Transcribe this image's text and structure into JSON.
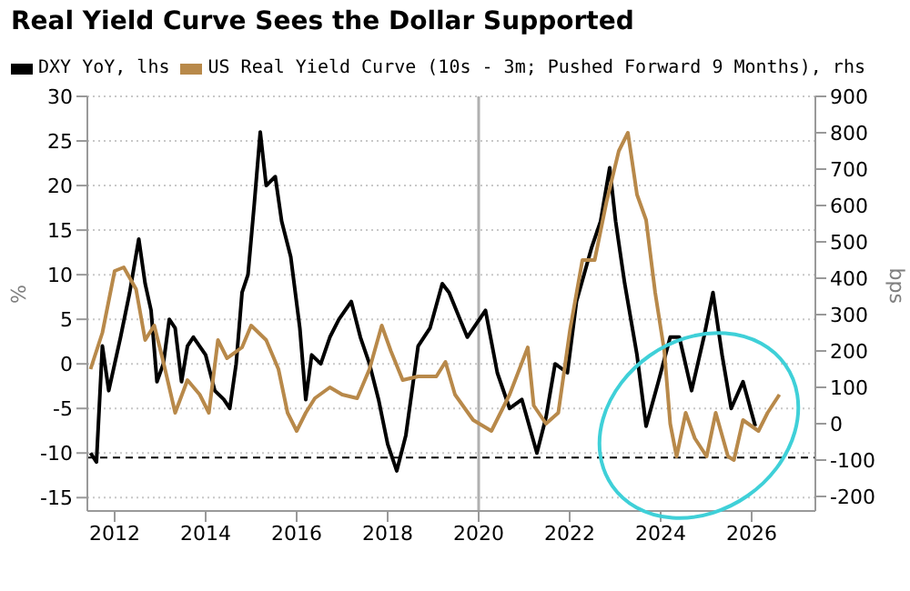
{
  "chart_data": {
    "type": "line",
    "title": "Real Yield Curve Sees the Dollar Supported",
    "ylabel": "%",
    "y2label": "bps",
    "legend": "top left",
    "grid": "y",
    "line_style": "solid",
    "marker": "none",
    "xlim": [
      2011.4,
      2027.4
    ],
    "xticks": [
      2012,
      2014,
      2016,
      2018,
      2020,
      2022,
      2024,
      2026
    ],
    "ylim": [
      -16.5,
      30
    ],
    "yticks": [
      -15,
      -10,
      -5,
      0,
      5,
      10,
      15,
      20,
      25,
      30
    ],
    "y2lim": [
      -240,
      900
    ],
    "y2ticks": [
      -200,
      -100,
      0,
      100,
      200,
      300,
      400,
      500,
      600,
      700,
      800,
      900
    ],
    "ref_lines": [
      {
        "axis": "y",
        "value": -10.5,
        "color": "#000000",
        "line_style": "dashed"
      },
      {
        "axis": "x",
        "value": 2020,
        "color": "#b0b0b0",
        "line_style": "solid"
      }
    ],
    "series": [
      {
        "name": "DXY YoY, lhs",
        "color": "#000000",
        "x": [
          2011.47,
          2011.6,
          2011.73,
          2011.87,
          2012.13,
          2012.33,
          2012.53,
          2012.67,
          2012.8,
          2012.93,
          2013.07,
          2013.2,
          2013.33,
          2013.47,
          2013.6,
          2013.73,
          2014,
          2014.2,
          2014.4,
          2014.53,
          2014.67,
          2014.8,
          2014.93,
          2015.07,
          2015.2,
          2015.33,
          2015.53,
          2015.67,
          2015.87,
          2016.07,
          2016.2,
          2016.33,
          2016.53,
          2016.73,
          2016.93,
          2017.2,
          2017.4,
          2017.6,
          2017.8,
          2018,
          2018.2,
          2018.4,
          2018.67,
          2018.93,
          2019.2,
          2019.35,
          2019.75,
          2020.15,
          2020.41,
          2020.68,
          2020.95,
          2021.28,
          2021.48,
          2021.68,
          2021.95,
          2022.15,
          2022.48,
          2022.68,
          2022.88,
          2023.01,
          2023.21,
          2023.48,
          2023.68,
          2023.95,
          2024.21,
          2024.41,
          2024.68,
          2024.95,
          2025.15,
          2025.35,
          2025.55,
          2025.81,
          2026.08
        ],
        "values": [
          -10,
          -11,
          2,
          -3,
          3,
          8,
          14,
          9,
          6,
          -2,
          0,
          5,
          4,
          -2,
          2,
          3,
          1,
          -3,
          -4,
          -5,
          0,
          8,
          10,
          18,
          26,
          20,
          21,
          16,
          12,
          4,
          -4,
          1,
          0,
          3,
          5,
          7,
          3,
          0,
          -4,
          -9,
          -12,
          -8,
          2,
          4,
          9,
          8,
          3,
          6,
          -1,
          -5,
          -4,
          -10,
          -6,
          0,
          -1,
          7,
          13,
          16,
          22,
          16,
          9,
          1,
          -7,
          -2,
          3,
          3,
          -3,
          3,
          8,
          1,
          -5,
          -2,
          -7
        ]
      },
      {
        "name": "US Real Yield Curve (10s - 3m; Pushed Forward 9 Months), rhs",
        "color": "#b8894a",
        "axis": "y2",
        "x": [
          2011.47,
          2011.73,
          2012,
          2012.2,
          2012.47,
          2012.67,
          2012.87,
          2013.07,
          2013.33,
          2013.6,
          2013.87,
          2014.07,
          2014.27,
          2014.47,
          2014.8,
          2015,
          2015.33,
          2015.6,
          2015.8,
          2016,
          2016.2,
          2016.4,
          2016.73,
          2017,
          2017.33,
          2017.6,
          2017.87,
          2018.07,
          2018.33,
          2018.67,
          2019.07,
          2019.27,
          2019.48,
          2019.88,
          2020.28,
          2020.68,
          2021.08,
          2021.21,
          2021.48,
          2021.75,
          2022.01,
          2022.28,
          2022.55,
          2022.81,
          2023.08,
          2023.28,
          2023.48,
          2023.68,
          2023.88,
          2024.08,
          2024.21,
          2024.35,
          2024.55,
          2024.75,
          2025.01,
          2025.21,
          2025.48,
          2025.61,
          2025.81,
          2026.15,
          2026.35,
          2026.61
        ],
        "values": [
          150,
          250,
          420,
          430,
          370,
          230,
          270,
          170,
          30,
          120,
          80,
          30,
          230,
          180,
          210,
          270,
          230,
          150,
          30,
          -20,
          30,
          70,
          100,
          80,
          70,
          150,
          270,
          200,
          120,
          130,
          130,
          170,
          80,
          10,
          -20,
          80,
          210,
          50,
          0,
          30,
          260,
          450,
          450,
          610,
          750,
          800,
          630,
          560,
          360,
          200,
          0,
          -90,
          30,
          -40,
          -90,
          30,
          -90,
          -100,
          10,
          -20,
          30,
          80
        ]
      }
    ]
  }
}
